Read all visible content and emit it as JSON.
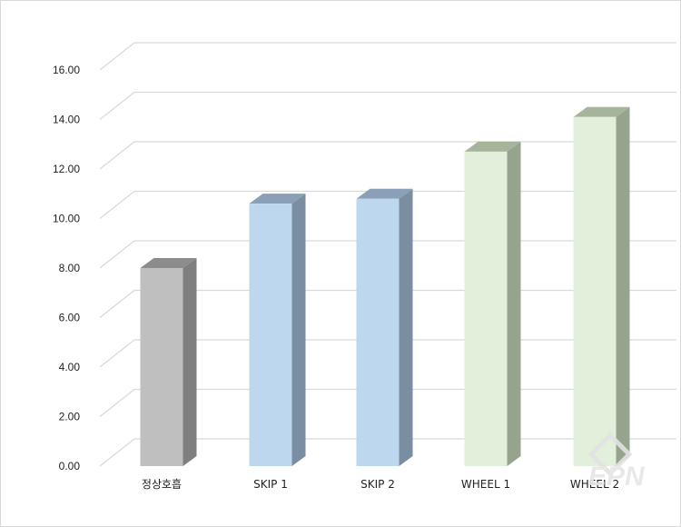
{
  "chart_data": {
    "type": "bar",
    "style": "3d-column",
    "categories": [
      "정상호흡",
      "SKIP 1",
      "SKIP 2",
      "WHEEL 1",
      "WHEEL 2"
    ],
    "values": [
      8.0,
      10.6,
      10.8,
      12.7,
      14.1
    ],
    "ylim": [
      0,
      16
    ],
    "ytick_step": 2,
    "ytick_labels": [
      "0.00",
      "2.00",
      "4.00",
      "6.00",
      "8.00",
      "10.00",
      "12.00",
      "14.00",
      "16.00"
    ],
    "grid": true,
    "legend": "none",
    "title": "",
    "xlabel": "",
    "ylabel": "",
    "colors": {
      "bar_front": [
        "#bfbfbf",
        "#bdd7ee",
        "#bdd7ee",
        "#e2efda",
        "#e2efda"
      ],
      "bar_side": [
        "#7f7f7f",
        "#7b8ea1",
        "#7b8ea1",
        "#96a38d",
        "#96a38d"
      ],
      "bar_top": [
        "#8c8c8c",
        "#8aa0b8",
        "#8aa0b8",
        "#a5b49a",
        "#a5b49a"
      ],
      "gridline": "#d9d9d9"
    }
  },
  "watermark": {
    "text": "EPN"
  }
}
